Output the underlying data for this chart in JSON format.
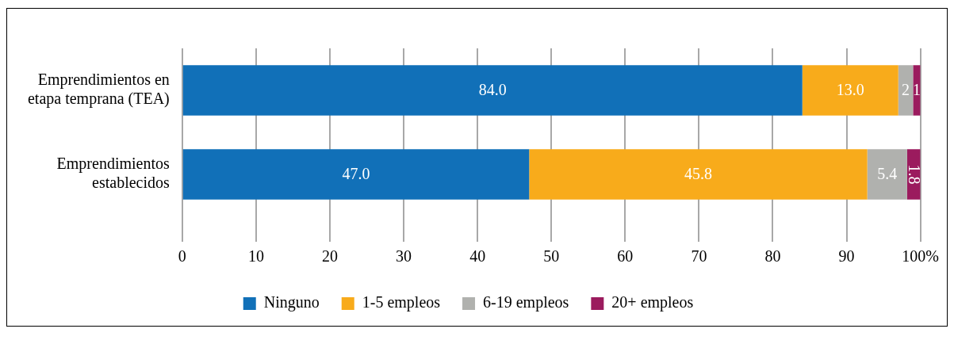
{
  "chart_data": {
    "type": "bar",
    "orientation": "horizontal",
    "stacked": true,
    "categories": [
      "Emprendimientos en etapa temprana (TEA)",
      "Emprendimientos establecidos"
    ],
    "series": [
      {
        "name": "Ninguno",
        "color": "#1170b8",
        "values": [
          84,
          47
        ],
        "value_labels": [
          "84.0",
          "47.0"
        ]
      },
      {
        "name": "1-5 empleos",
        "color": "#f8ab1b",
        "values": [
          13,
          45.8
        ],
        "value_labels": [
          "13.0",
          "45.8"
        ]
      },
      {
        "name": "6-19 empleos",
        "color": "#b0b1ae",
        "values": [
          2,
          5.4
        ],
        "value_labels": [
          "2",
          "5.4"
        ]
      },
      {
        "name": "20+ empleos",
        "color": "#9b1b5e",
        "values": [
          1,
          1.8
        ],
        "value_labels": [
          "1",
          "1.8"
        ]
      }
    ],
    "xlim": [
      0,
      100
    ],
    "xticks": [
      0,
      10,
      20,
      30,
      40,
      50,
      60,
      70,
      80,
      90,
      {
        "value": 100,
        "label": "100%"
      }
    ],
    "grid": "x",
    "legend": "bottom"
  }
}
